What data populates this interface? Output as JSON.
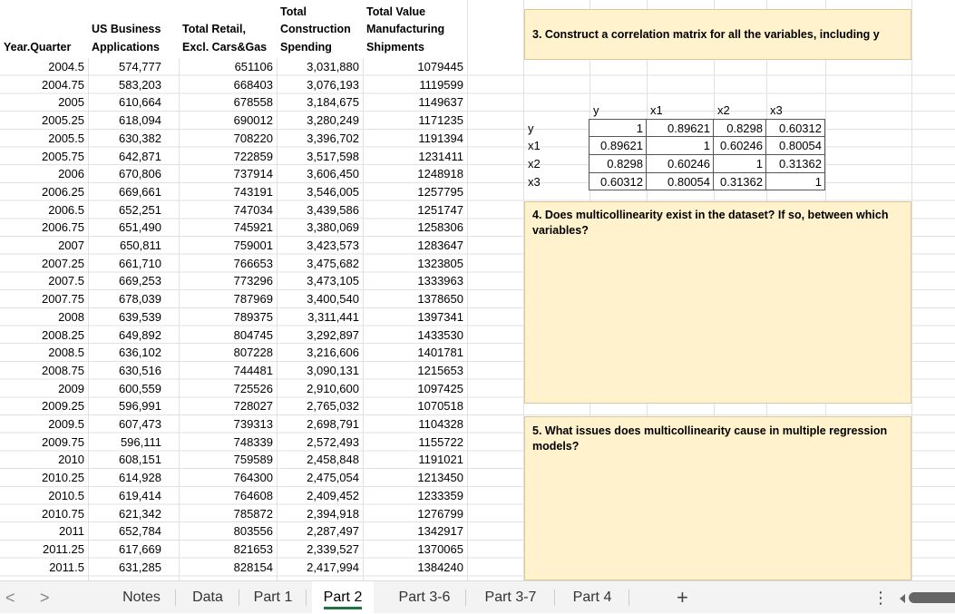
{
  "headers": [
    [
      "",
      "",
      "Year.Quarter"
    ],
    [
      "",
      "US Business",
      "Applications"
    ],
    [
      "",
      "Total Retail,",
      "Excl. Cars&Gas"
    ],
    [
      "Total",
      "Construction",
      "Spending"
    ],
    [
      "Total Value",
      "Manufacturing",
      "Shipments"
    ]
  ],
  "rows": [
    [
      "2004.5",
      "574,777",
      "651106",
      "3,031,880",
      "1079445"
    ],
    [
      "2004.75",
      "583,203",
      "668403",
      "3,076,193",
      "1119599"
    ],
    [
      "2005",
      "610,664",
      "678558",
      "3,184,675",
      "1149637"
    ],
    [
      "2005.25",
      "618,094",
      "690012",
      "3,280,249",
      "1171235"
    ],
    [
      "2005.5",
      "630,382",
      "708220",
      "3,396,702",
      "1191394"
    ],
    [
      "2005.75",
      "642,871",
      "722859",
      "3,517,598",
      "1231411"
    ],
    [
      "2006",
      "670,806",
      "737914",
      "3,606,450",
      "1248918"
    ],
    [
      "2006.25",
      "669,661",
      "743191",
      "3,546,005",
      "1257795"
    ],
    [
      "2006.5",
      "652,251",
      "747034",
      "3,439,586",
      "1251747"
    ],
    [
      "2006.75",
      "651,490",
      "745921",
      "3,380,069",
      "1258306"
    ],
    [
      "2007",
      "650,811",
      "759001",
      "3,423,573",
      "1283647"
    ],
    [
      "2007.25",
      "661,710",
      "766653",
      "3,475,682",
      "1323805"
    ],
    [
      "2007.5",
      "669,253",
      "773296",
      "3,473,105",
      "1333963"
    ],
    [
      "2007.75",
      "678,039",
      "787969",
      "3,400,540",
      "1378650"
    ],
    [
      "2008",
      "639,539",
      "789375",
      "3,311,441",
      "1397341"
    ],
    [
      "2008.25",
      "649,892",
      "804745",
      "3,292,897",
      "1433530"
    ],
    [
      "2008.5",
      "636,102",
      "807228",
      "3,216,606",
      "1401781"
    ],
    [
      "2008.75",
      "630,516",
      "744481",
      "3,090,131",
      "1215653"
    ],
    [
      "2009",
      "600,559",
      "725526",
      "2,910,600",
      "1097425"
    ],
    [
      "2009.25",
      "596,991",
      "728027",
      "2,765,032",
      "1070518"
    ],
    [
      "2009.5",
      "607,473",
      "739313",
      "2,698,791",
      "1104328"
    ],
    [
      "2009.75",
      "596,111",
      "748339",
      "2,572,493",
      "1155722"
    ],
    [
      "2010",
      "608,151",
      "759589",
      "2,458,848",
      "1191021"
    ],
    [
      "2010.25",
      "614,928",
      "764300",
      "2,475,054",
      "1213450"
    ],
    [
      "2010.5",
      "619,414",
      "764608",
      "2,409,452",
      "1233359"
    ],
    [
      "2010.75",
      "621,342",
      "785872",
      "2,394,918",
      "1276799"
    ],
    [
      "2011",
      "652,784",
      "803556",
      "2,287,497",
      "1342917"
    ],
    [
      "2011.25",
      "617,669",
      "821653",
      "2,339,527",
      "1370065"
    ],
    [
      "2011.5",
      "631,285",
      "828154",
      "2,417,994",
      "1384240"
    ]
  ],
  "questions": {
    "q3": "3. Construct a correlation matrix for all the variables, including y",
    "q4": "4. Does multicollinearity exist in the dataset? If so, between which variables?",
    "q5": "5. What issues does multicollinearity cause in multiple regression models?"
  },
  "correlation": {
    "columns": [
      "y",
      "x1",
      "x2",
      "x3"
    ],
    "rows": [
      {
        "label": "y",
        "values": [
          "1",
          "0.89621",
          "0.8298",
          "0.60312"
        ]
      },
      {
        "label": "x1",
        "values": [
          "0.89621",
          "1",
          "0.60246",
          "0.80054"
        ]
      },
      {
        "label": "x2",
        "values": [
          "0.8298",
          "0.60246",
          "1",
          "0.31362"
        ]
      },
      {
        "label": "x3",
        "values": [
          "0.60312",
          "0.80054",
          "0.31362",
          "1"
        ]
      }
    ]
  },
  "tabs": [
    {
      "label": "Notes"
    },
    {
      "label": "Data"
    },
    {
      "label": "Part 1"
    },
    {
      "label": "Part 2",
      "active": true
    },
    {
      "label": "Part 3-6"
    },
    {
      "label": "Part 3-7"
    },
    {
      "label": "Part 4"
    }
  ],
  "tabbar": {
    "prev": "<",
    "next": ">",
    "add": "+",
    "more": "⋮"
  },
  "colors": {
    "question_fill": "#fff2cc",
    "active_tab_underline": "#217346"
  }
}
